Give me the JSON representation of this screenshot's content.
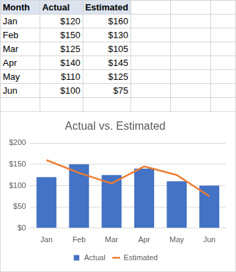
{
  "chart_data": {
    "type": "bar",
    "title": "Actual vs. Estimated",
    "categories": [
      "Jan",
      "Feb",
      "Mar",
      "Apr",
      "May",
      "Jun"
    ],
    "series": [
      {
        "name": "Actual",
        "color": "#4472c4",
        "values": [
          120,
          150,
          125,
          140,
          110,
          100
        ]
      },
      {
        "name": "Estimated",
        "color": "#ed7d31",
        "type": "line",
        "values": [
          160,
          130,
          105,
          145,
          125,
          75
        ]
      }
    ],
    "ylim": [
      0,
      200
    ],
    "yticks": [
      {
        "value": 0,
        "label": "$0"
      },
      {
        "value": 50,
        "label": "$50"
      },
      {
        "value": 100,
        "label": "$100"
      },
      {
        "value": 150,
        "label": "$150"
      },
      {
        "value": 200,
        "label": "$200"
      }
    ],
    "grid": true,
    "legend": "bottom"
  },
  "table": {
    "header": [
      "Month",
      "Actual",
      "Estimated"
    ],
    "rows": [
      [
        "Jan",
        "$120",
        "$160"
      ],
      [
        "Feb",
        "$150",
        "$130"
      ],
      [
        "Mar",
        "$125",
        "$105"
      ],
      [
        "Apr",
        "$140",
        "$145"
      ],
      [
        "May",
        "$110",
        "$125"
      ],
      [
        "Jun",
        "$100",
        "$75"
      ]
    ]
  }
}
